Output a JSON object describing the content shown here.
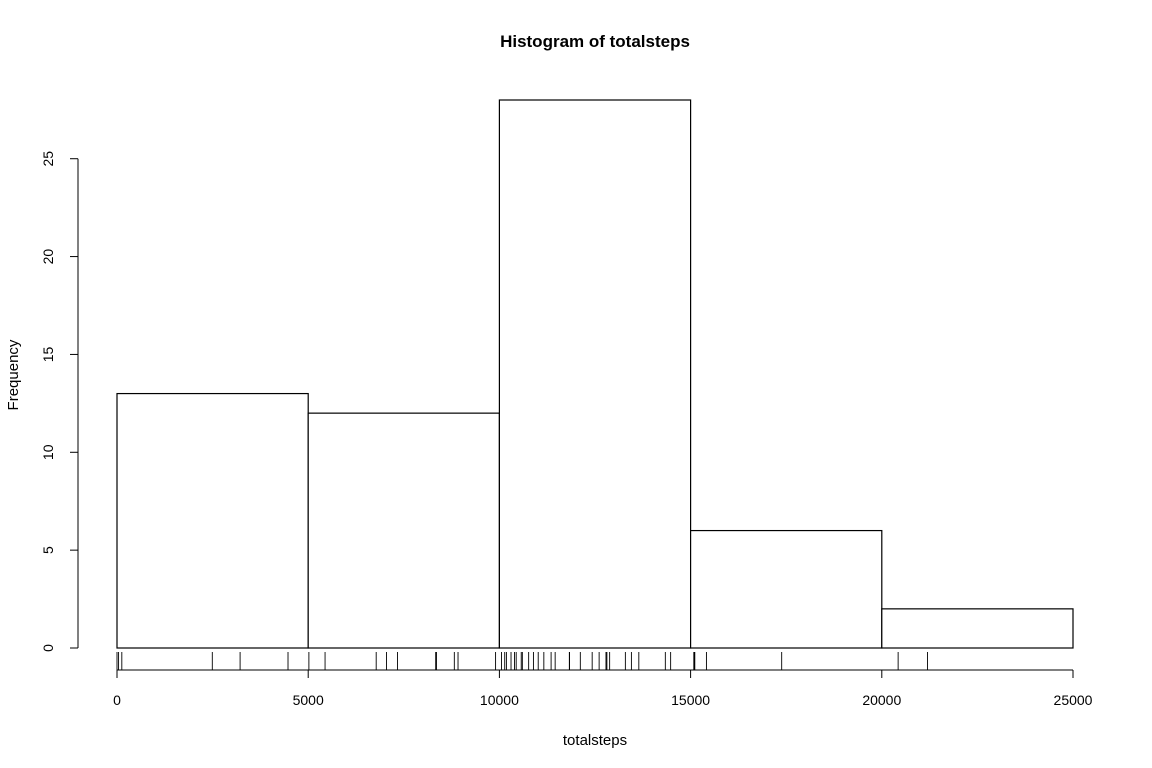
{
  "chart_data": {
    "type": "bar",
    "title": "Histogram of totalsteps",
    "xlabel": "totalsteps",
    "ylabel": "Frequency",
    "bins": [
      {
        "from": 0,
        "to": 5000,
        "count": 13
      },
      {
        "from": 5000,
        "to": 10000,
        "count": 12
      },
      {
        "from": 10000,
        "to": 15000,
        "count": 28
      },
      {
        "from": 15000,
        "to": 20000,
        "count": 6
      },
      {
        "from": 20000,
        "to": 25000,
        "count": 2
      }
    ],
    "xlim": [
      0,
      25000
    ],
    "ylim": [
      0,
      28
    ],
    "x_ticks": [
      0,
      5000,
      10000,
      15000,
      20000,
      25000
    ],
    "y_ticks": [
      0,
      5,
      10,
      15,
      20,
      25
    ],
    "rug": [
      0,
      41,
      126,
      2492,
      3219,
      4472,
      5018,
      5441,
      6778,
      7047,
      7336,
      8334,
      8355,
      8821,
      8918,
      9900,
      10056,
      10139,
      10183,
      10304,
      10395,
      10439,
      10571,
      10600,
      10765,
      10890,
      11015,
      11162,
      11352,
      11458,
      11834,
      11829,
      12116,
      12426,
      12608,
      12787,
      12811,
      12883,
      13294,
      13452,
      13646,
      14339,
      14478,
      15084,
      15098,
      15110,
      15414,
      17382,
      20427,
      21194
    ],
    "grid": false,
    "legend": "none"
  }
}
